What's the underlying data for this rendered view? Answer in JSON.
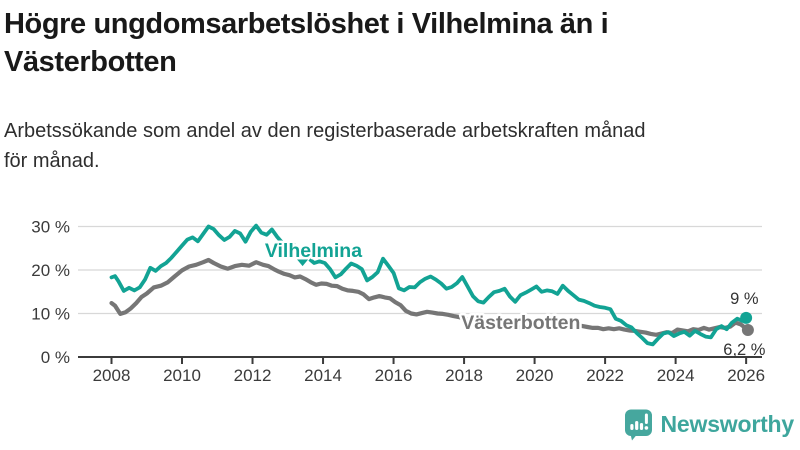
{
  "header": {
    "title_lines": [
      "Högre ungdomsarbetslöshet i Vilhelmina än i",
      "Västerbotten"
    ],
    "subtitle_lines": [
      "Arbetssökande som andel av den registerbaserade arbetskraften månad",
      "för månad."
    ]
  },
  "footer": {
    "brand": "Newsworthy"
  },
  "colors": {
    "vilhelmina": "#12a394",
    "vasterbotten": "#767676",
    "axis": "#3b3b3b",
    "grid": "#d8d8d8",
    "logo": "#46a79e",
    "logo_text": "#3ea69d",
    "annotation": "#333333"
  },
  "chart_data": {
    "type": "line",
    "title": "Högre ungdomsarbetslöshet i Vilhelmina än i Västerbotten",
    "subtitle": "Arbetssökande som andel av den registerbaserade arbetskraften månad för månad.",
    "x_unit": "year (monthly values)",
    "ylabel": "%",
    "xlim": [
      2007.05,
      2026.45
    ],
    "ylim": [
      0,
      36.1
    ],
    "grid": "horizontal",
    "legend_position": "inline-labels",
    "xticks": [
      {
        "x": 2008,
        "label": "2008"
      },
      {
        "x": 2010,
        "label": "2010"
      },
      {
        "x": 2012,
        "label": "2012"
      },
      {
        "x": 2014,
        "label": "2014"
      },
      {
        "x": 2016,
        "label": "2016"
      },
      {
        "x": 2018,
        "label": "2018"
      },
      {
        "x": 2020,
        "label": "2020"
      },
      {
        "x": 2022,
        "label": "2022"
      },
      {
        "x": 2024,
        "label": "2024"
      },
      {
        "x": 2026,
        "label": "2026"
      }
    ],
    "yticks": [
      {
        "y": 0,
        "label": "0 %"
      },
      {
        "y": 10,
        "label": "10 %"
      },
      {
        "y": 20,
        "label": "20 %"
      },
      {
        "y": 30,
        "label": "30 %"
      }
    ],
    "series": [
      {
        "id": "vasterbotten",
        "name": "Västerbotten",
        "color": "#767676",
        "stroke_width": 4.2,
        "end_dot": true,
        "end_value_label": "6,2 %",
        "label": {
          "text": "Västerbotten",
          "x": 2017.92,
          "y": 6.4,
          "anchor": "start"
        },
        "points": [
          [
            2008.0,
            12.4
          ],
          [
            2008.1,
            11.8
          ],
          [
            2008.25,
            9.9
          ],
          [
            2008.4,
            10.3
          ],
          [
            2008.55,
            11.2
          ],
          [
            2008.7,
            12.4
          ],
          [
            2008.85,
            13.8
          ],
          [
            2009.0,
            14.6
          ],
          [
            2009.2,
            16.0
          ],
          [
            2009.4,
            16.4
          ],
          [
            2009.6,
            17.2
          ],
          [
            2009.8,
            18.6
          ],
          [
            2010.0,
            19.9
          ],
          [
            2010.2,
            20.8
          ],
          [
            2010.4,
            21.2
          ],
          [
            2010.6,
            21.8
          ],
          [
            2010.75,
            22.3
          ],
          [
            2010.9,
            21.6
          ],
          [
            2011.1,
            20.8
          ],
          [
            2011.3,
            20.3
          ],
          [
            2011.5,
            20.9
          ],
          [
            2011.7,
            21.2
          ],
          [
            2011.9,
            21.0
          ],
          [
            2012.1,
            21.8
          ],
          [
            2012.3,
            21.2
          ],
          [
            2012.45,
            20.9
          ],
          [
            2012.6,
            20.2
          ],
          [
            2012.75,
            19.6
          ],
          [
            2012.9,
            19.1
          ],
          [
            2013.05,
            18.8
          ],
          [
            2013.2,
            18.3
          ],
          [
            2013.35,
            18.5
          ],
          [
            2013.5,
            17.9
          ],
          [
            2013.65,
            17.2
          ],
          [
            2013.8,
            16.6
          ],
          [
            2013.95,
            16.9
          ],
          [
            2014.1,
            16.8
          ],
          [
            2014.25,
            16.4
          ],
          [
            2014.4,
            16.3
          ],
          [
            2014.55,
            15.7
          ],
          [
            2014.7,
            15.3
          ],
          [
            2014.85,
            15.2
          ],
          [
            2015.0,
            15.0
          ],
          [
            2015.15,
            14.4
          ],
          [
            2015.3,
            13.3
          ],
          [
            2015.45,
            13.7
          ],
          [
            2015.6,
            14.0
          ],
          [
            2015.75,
            13.7
          ],
          [
            2015.9,
            13.5
          ],
          [
            2016.05,
            12.6
          ],
          [
            2016.2,
            11.9
          ],
          [
            2016.35,
            10.6
          ],
          [
            2016.5,
            10.0
          ],
          [
            2016.65,
            9.8
          ],
          [
            2016.8,
            10.1
          ],
          [
            2016.95,
            10.4
          ],
          [
            2017.1,
            10.2
          ],
          [
            2017.25,
            10.0
          ],
          [
            2017.4,
            9.9
          ],
          [
            2017.55,
            9.7
          ],
          [
            2017.7,
            9.4
          ],
          [
            2017.85,
            9.2
          ],
          [
            2018.0,
            8.8
          ],
          [
            2018.2,
            8.4
          ],
          [
            2018.4,
            8.0
          ],
          [
            2018.6,
            7.7
          ],
          [
            2018.8,
            7.4
          ],
          [
            2019.0,
            7.2
          ],
          [
            2019.2,
            7.0
          ],
          [
            2019.4,
            6.9
          ],
          [
            2019.6,
            6.8
          ],
          [
            2019.8,
            7.0
          ],
          [
            2020.0,
            7.4
          ],
          [
            2020.2,
            8.5
          ],
          [
            2020.35,
            8.9
          ],
          [
            2020.5,
            8.7
          ],
          [
            2020.7,
            8.4
          ],
          [
            2020.9,
            8.0
          ],
          [
            2021.1,
            7.6
          ],
          [
            2021.3,
            7.2
          ],
          [
            2021.5,
            6.9
          ],
          [
            2021.65,
            6.7
          ],
          [
            2021.8,
            6.7
          ],
          [
            2021.95,
            6.4
          ],
          [
            2022.1,
            6.6
          ],
          [
            2022.25,
            6.4
          ],
          [
            2022.4,
            6.6
          ],
          [
            2022.55,
            6.3
          ],
          [
            2022.7,
            6.1
          ],
          [
            2022.85,
            6.0
          ],
          [
            2023.0,
            5.8
          ],
          [
            2023.15,
            5.6
          ],
          [
            2023.3,
            5.3
          ],
          [
            2023.45,
            5.1
          ],
          [
            2023.6,
            5.4
          ],
          [
            2023.75,
            5.7
          ],
          [
            2023.9,
            5.5
          ],
          [
            2024.05,
            6.3
          ],
          [
            2024.2,
            6.1
          ],
          [
            2024.35,
            5.9
          ],
          [
            2024.5,
            6.4
          ],
          [
            2024.65,
            6.2
          ],
          [
            2024.8,
            6.7
          ],
          [
            2024.95,
            6.3
          ],
          [
            2025.1,
            6.6
          ],
          [
            2025.25,
            6.9
          ],
          [
            2025.4,
            6.7
          ],
          [
            2025.55,
            7.0
          ],
          [
            2025.7,
            7.9
          ],
          [
            2025.85,
            7.5
          ],
          [
            2026.05,
            6.2
          ]
        ]
      },
      {
        "id": "vilhelmina",
        "name": "Vilhelmina",
        "color": "#12a394",
        "stroke_width": 3.8,
        "end_dot": true,
        "end_value_label": "9 %",
        "label": {
          "text": "Vilhelmina",
          "x": 2012.35,
          "y": 23.0,
          "anchor": "start"
        },
        "pointer": {
          "x": 2013.42,
          "y_top": 22.4,
          "y_tip": 20.9
        },
        "points": [
          [
            2008.0,
            18.3
          ],
          [
            2008.1,
            18.6
          ],
          [
            2008.2,
            17.4
          ],
          [
            2008.35,
            15.2
          ],
          [
            2008.5,
            15.9
          ],
          [
            2008.65,
            15.3
          ],
          [
            2008.8,
            16.0
          ],
          [
            2008.95,
            17.8
          ],
          [
            2009.1,
            20.5
          ],
          [
            2009.25,
            19.8
          ],
          [
            2009.4,
            20.9
          ],
          [
            2009.55,
            21.6
          ],
          [
            2009.7,
            22.8
          ],
          [
            2009.85,
            24.2
          ],
          [
            2010.0,
            25.6
          ],
          [
            2010.15,
            27.0
          ],
          [
            2010.3,
            27.5
          ],
          [
            2010.45,
            26.6
          ],
          [
            2010.6,
            28.3
          ],
          [
            2010.75,
            30.0
          ],
          [
            2010.9,
            29.4
          ],
          [
            2011.05,
            28.0
          ],
          [
            2011.2,
            26.9
          ],
          [
            2011.35,
            27.6
          ],
          [
            2011.5,
            29.0
          ],
          [
            2011.65,
            28.4
          ],
          [
            2011.8,
            26.5
          ],
          [
            2011.95,
            28.8
          ],
          [
            2012.1,
            30.2
          ],
          [
            2012.25,
            28.6
          ],
          [
            2012.4,
            28.1
          ],
          [
            2012.55,
            29.3
          ],
          [
            2012.7,
            27.6
          ],
          [
            2012.85,
            26.2
          ],
          [
            2013.0,
            25.8
          ],
          [
            2013.15,
            26.0
          ],
          [
            2013.3,
            24.2
          ],
          [
            2013.45,
            22.8
          ],
          [
            2013.6,
            22.6
          ],
          [
            2013.75,
            21.6
          ],
          [
            2013.9,
            22.0
          ],
          [
            2014.05,
            21.6
          ],
          [
            2014.2,
            20.2
          ],
          [
            2014.35,
            18.3
          ],
          [
            2014.5,
            19.0
          ],
          [
            2014.65,
            20.3
          ],
          [
            2014.8,
            21.5
          ],
          [
            2014.95,
            21.0
          ],
          [
            2015.1,
            20.2
          ],
          [
            2015.25,
            17.6
          ],
          [
            2015.4,
            18.4
          ],
          [
            2015.55,
            19.5
          ],
          [
            2015.7,
            22.6
          ],
          [
            2015.85,
            21.0
          ],
          [
            2016.0,
            19.3
          ],
          [
            2016.15,
            15.8
          ],
          [
            2016.3,
            15.3
          ],
          [
            2016.45,
            16.1
          ],
          [
            2016.6,
            16.0
          ],
          [
            2016.75,
            17.2
          ],
          [
            2016.9,
            18.0
          ],
          [
            2017.05,
            18.5
          ],
          [
            2017.2,
            17.8
          ],
          [
            2017.35,
            16.9
          ],
          [
            2017.5,
            15.7
          ],
          [
            2017.65,
            16.1
          ],
          [
            2017.8,
            17.0
          ],
          [
            2017.95,
            18.4
          ],
          [
            2018.1,
            16.2
          ],
          [
            2018.25,
            14.0
          ],
          [
            2018.4,
            12.8
          ],
          [
            2018.55,
            12.5
          ],
          [
            2018.7,
            13.8
          ],
          [
            2018.85,
            14.9
          ],
          [
            2019.0,
            15.2
          ],
          [
            2019.15,
            15.7
          ],
          [
            2019.3,
            13.9
          ],
          [
            2019.45,
            12.7
          ],
          [
            2019.6,
            14.2
          ],
          [
            2019.75,
            14.8
          ],
          [
            2019.9,
            15.5
          ],
          [
            2020.05,
            16.2
          ],
          [
            2020.2,
            15.0
          ],
          [
            2020.35,
            15.3
          ],
          [
            2020.5,
            15.1
          ],
          [
            2020.65,
            14.5
          ],
          [
            2020.8,
            16.4
          ],
          [
            2020.95,
            15.2
          ],
          [
            2021.1,
            14.2
          ],
          [
            2021.25,
            13.2
          ],
          [
            2021.4,
            12.9
          ],
          [
            2021.55,
            12.4
          ],
          [
            2021.7,
            11.8
          ],
          [
            2021.85,
            11.5
          ],
          [
            2022.0,
            11.3
          ],
          [
            2022.15,
            11.0
          ],
          [
            2022.3,
            8.8
          ],
          [
            2022.45,
            8.3
          ],
          [
            2022.6,
            7.3
          ],
          [
            2022.75,
            6.8
          ],
          [
            2022.9,
            5.5
          ],
          [
            2023.05,
            4.4
          ],
          [
            2023.2,
            3.2
          ],
          [
            2023.35,
            2.9
          ],
          [
            2023.5,
            4.2
          ],
          [
            2023.65,
            5.4
          ],
          [
            2023.8,
            5.7
          ],
          [
            2023.95,
            4.8
          ],
          [
            2024.1,
            5.4
          ],
          [
            2024.25,
            5.8
          ],
          [
            2024.4,
            4.9
          ],
          [
            2024.55,
            6.0
          ],
          [
            2024.7,
            5.3
          ],
          [
            2024.85,
            4.7
          ],
          [
            2025.0,
            4.5
          ],
          [
            2025.15,
            6.4
          ],
          [
            2025.3,
            7.1
          ],
          [
            2025.45,
            6.4
          ],
          [
            2025.6,
            7.9
          ],
          [
            2025.75,
            8.8
          ],
          [
            2025.9,
            8.3
          ],
          [
            2026.0,
            9.0
          ]
        ]
      }
    ],
    "end_labels": [
      {
        "text": "9 %",
        "x": 2025.95,
        "y": 12.2,
        "anchor": "middle"
      },
      {
        "text": "6,2 %",
        "x": 2025.95,
        "y": 0.5,
        "anchor": "middle"
      }
    ]
  }
}
